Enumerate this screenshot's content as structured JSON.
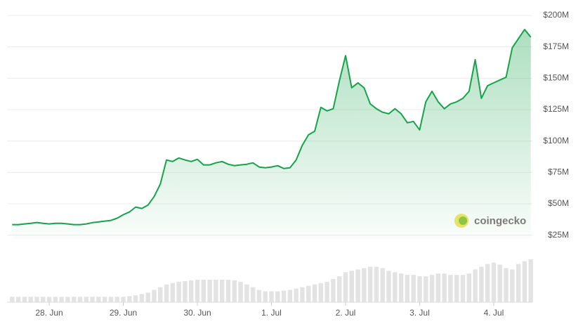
{
  "chart_data": {
    "type": "area",
    "watermark": "coingecko",
    "color": "#16a34a",
    "categories": [
      null,
      null,
      null,
      null,
      null,
      null,
      "28. Jun",
      null,
      null,
      null,
      null,
      null,
      null,
      null,
      null,
      null,
      null,
      null,
      "29. Jun",
      null,
      null,
      null,
      null,
      null,
      null,
      null,
      null,
      null,
      null,
      null,
      "30. Jun",
      null,
      null,
      null,
      null,
      null,
      null,
      null,
      null,
      null,
      null,
      null,
      "1. Jul",
      null,
      null,
      null,
      null,
      null,
      null,
      null,
      null,
      null,
      null,
      null,
      "2. Jul",
      null,
      null,
      null,
      null,
      null,
      null,
      null,
      null,
      null,
      null,
      null,
      "3. Jul",
      null,
      null,
      null,
      null,
      null,
      null,
      null,
      null,
      null,
      null,
      null,
      "4. Jul",
      null,
      null,
      null,
      null,
      null,
      null
    ],
    "values": [
      33.4,
      33.4,
      34,
      34.5,
      35.1,
      34.5,
      34,
      34.5,
      34.5,
      34,
      33.4,
      33.4,
      34,
      35,
      35.6,
      36.2,
      36.8,
      38.5,
      41.3,
      43.5,
      47.4,
      46.3,
      49,
      55.8,
      65.8,
      84.9,
      83.7,
      86.5,
      84.9,
      83.7,
      85.4,
      81,
      81,
      82.6,
      83.7,
      81.5,
      80.4,
      81,
      81.5,
      82.6,
      79.3,
      78.7,
      79.3,
      80.4,
      78.1,
      78.7,
      84.9,
      96.6,
      105,
      107.8,
      126.8,
      124,
      125.7,
      148,
      168,
      142.4,
      146.3,
      142.4,
      129.6,
      125.7,
      122.9,
      121.7,
      125.7,
      121.7,
      114.5,
      115.6,
      108.9,
      131.2,
      139.6,
      131.2,
      125.7,
      129.6,
      131.2,
      134,
      139.6,
      164.8,
      134,
      144,
      146.3,
      148.6,
      150.8,
      174.3,
      181.6,
      188.8,
      182.7
    ],
    "volumes": [
      8,
      8,
      8,
      8,
      8,
      8,
      8,
      8,
      8,
      8,
      8,
      8,
      8,
      8,
      8,
      8,
      8,
      8,
      8,
      9,
      10,
      12,
      14,
      18,
      22,
      26,
      28,
      30,
      31,
      32,
      33,
      33,
      33,
      33,
      33,
      33,
      32,
      30,
      26,
      22,
      18,
      16,
      16,
      16,
      17,
      18,
      20,
      22,
      24,
      26,
      28,
      30,
      34,
      38,
      44,
      46,
      48,
      50,
      52,
      52,
      50,
      46,
      44,
      42,
      40,
      40,
      38,
      38,
      40,
      42,
      42,
      40,
      40,
      40,
      42,
      48,
      52,
      56,
      58,
      55,
      50,
      48,
      56,
      60,
      63
    ],
    "vlim": [
      0,
      70
    ],
    "ylim": [
      22,
      200
    ],
    "yticks": [
      {
        "value": 25,
        "label": "$25M"
      },
      {
        "value": 50,
        "label": "$50M"
      },
      {
        "value": 75,
        "label": "$75M"
      },
      {
        "value": 100,
        "label": "$100M"
      },
      {
        "value": 125,
        "label": "$125M"
      },
      {
        "value": 150,
        "label": "$150M"
      },
      {
        "value": 175,
        "label": "$175M"
      },
      {
        "value": 200,
        "label": "$200M"
      }
    ],
    "grid": true
  }
}
